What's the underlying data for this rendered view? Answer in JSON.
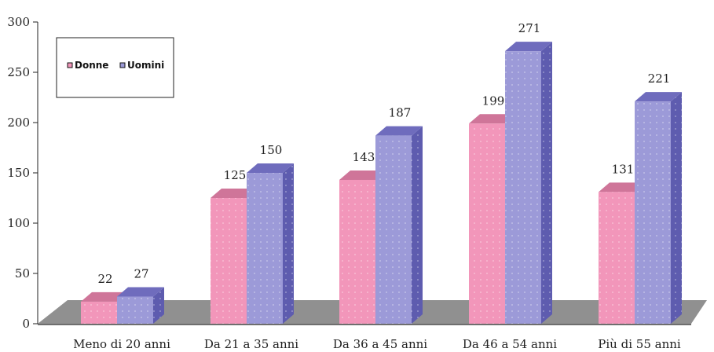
{
  "chart_data": {
    "type": "bar",
    "categories": [
      "Meno di 20 anni",
      "Da 21 a 35 anni",
      "Da 36 a 45 anni",
      "Da 46 a 54 anni",
      "Più di 55 anni"
    ],
    "series": [
      {
        "name": "Donne",
        "values": [
          22,
          125,
          143,
          199,
          131
        ]
      },
      {
        "name": "Uomini",
        "values": [
          27,
          150,
          187,
          271,
          221
        ]
      }
    ],
    "yticks": [
      0,
      50,
      100,
      150,
      200,
      250,
      300
    ],
    "ylim": [
      0,
      300
    ],
    "legend_position": "top-left",
    "colors": {
      "Donne": {
        "front": "#f296ba",
        "side": "#c1658c",
        "top": "#cf7599"
      },
      "Uomini": {
        "front": "#9c9ad8",
        "side": "#5e5caf",
        "top": "#6f6cbd"
      },
      "floor": "#909090"
    }
  }
}
